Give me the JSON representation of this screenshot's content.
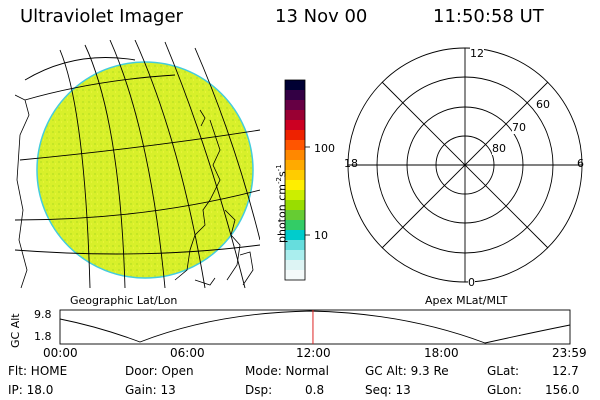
{
  "header": {
    "title": "Ultraviolet Imager",
    "date": "13 Nov 00",
    "time": "11:50:58 UT"
  },
  "colorbar": {
    "label": "photon cm",
    "label_exp": "-2",
    "label_suffix": "s",
    "label_exp2": "-1",
    "ticks": [
      "100",
      "10"
    ],
    "colors": [
      "#000033",
      "#330044",
      "#660044",
      "#990033",
      "#cc0022",
      "#ee2200",
      "#ff5500",
      "#ff8800",
      "#ffaa00",
      "#ffcc00",
      "#ffee00",
      "#ccee00",
      "#99dd00",
      "#66cc33",
      "#33cc66",
      "#00cccc",
      "#66dddd",
      "#aaeeee",
      "#ddf4f4",
      "#f4fafa"
    ]
  },
  "image_panel": {
    "label": "Geographic Lat/Lon",
    "fill_color": "#d8f02a"
  },
  "polar_panel": {
    "label": "Apex MLat/MLT",
    "mlt_labels": {
      "top": "12",
      "bottom": "0",
      "left": "18",
      "right": "6"
    },
    "lat_labels": [
      "60",
      "70",
      "80"
    ]
  },
  "orbit_plot": {
    "ylabel": "GC Alt",
    "y_ticks": [
      "9.8",
      "1.8"
    ],
    "x_ticks": [
      "00:00",
      "06:00",
      "12:00",
      "18:00",
      "23:59"
    ],
    "marker_time_fraction": 0.496
  },
  "info": {
    "flt": "Flt: HOME",
    "ip": "IP: 18.0",
    "door": "Door: Open",
    "gain": "Gain: 13",
    "mode": "Mode: Normal",
    "dsp_label": "Dsp:",
    "dsp_value": "0.8",
    "gcalt": "GC Alt: 9.3 Re",
    "seq": "Seq: 13",
    "glat_label": "GLat:",
    "glat_value": "12.7",
    "glon_label": "GLon:",
    "glon_value": "156.0"
  }
}
